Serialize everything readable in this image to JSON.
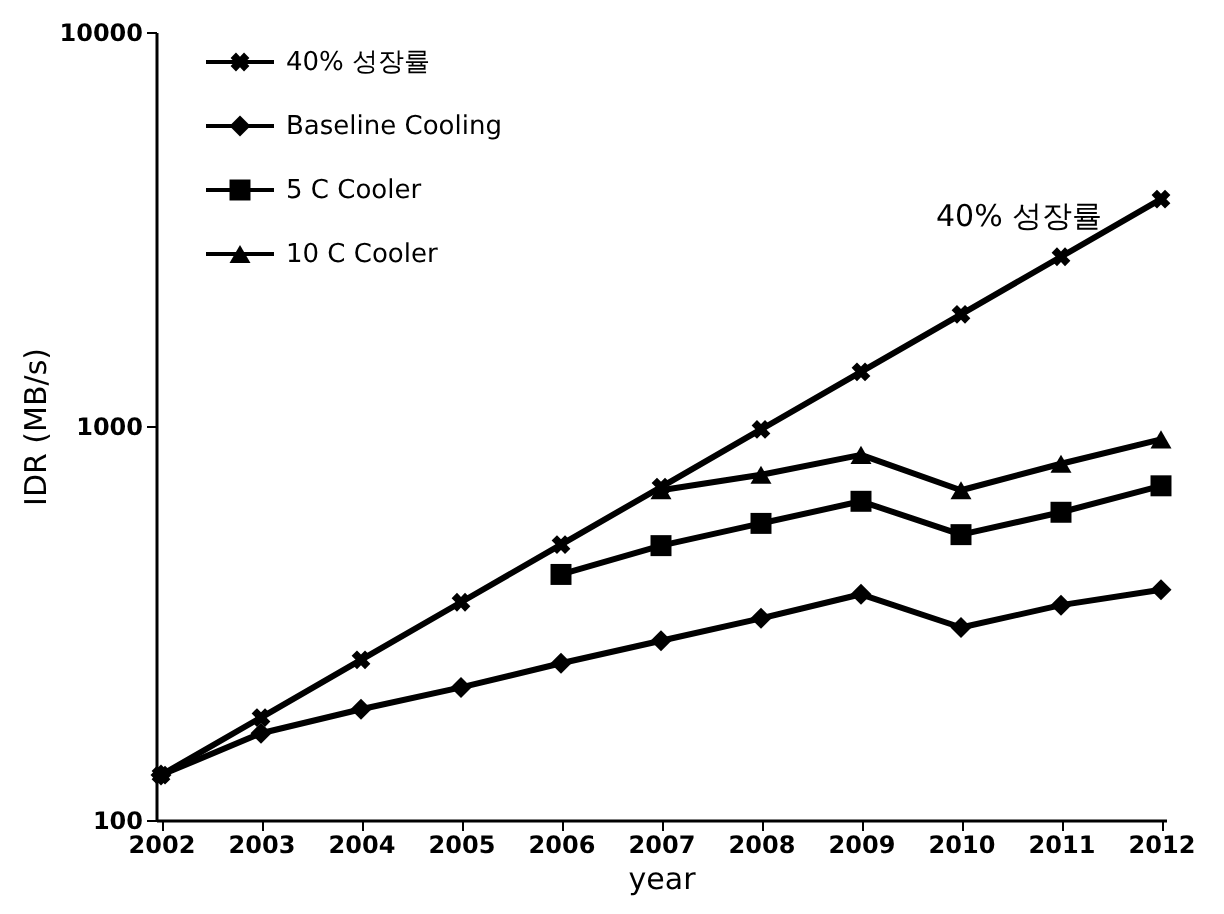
{
  "chart_data": {
    "type": "line",
    "xlabel": "year",
    "ylabel": "IDR (MB/s)",
    "categories": [
      "2002",
      "2003",
      "2004",
      "2005",
      "2006",
      "2007",
      "2008",
      "2009",
      "2010",
      "2011",
      "2012"
    ],
    "series": [
      {
        "name": "40% 성장률",
        "color": "#000000",
        "marker": "cross",
        "values": [
          130,
          182,
          255,
          357,
          500,
          700,
          980,
          1372,
          1921,
          2689,
          3765
        ]
      },
      {
        "name": "Baseline Cooling",
        "color": "#000000",
        "marker": "diamond",
        "values": [
          130,
          166,
          191,
          217,
          250,
          285,
          325,
          374,
          308,
          351,
          384
        ]
      },
      {
        "name": "5 C Cooler",
        "color": "#000000",
        "marker": "square",
        "values": [
          null,
          null,
          null,
          null,
          420,
          497,
          566,
          644,
          530,
          604,
          705
        ]
      },
      {
        "name": "10 C Cooler",
        "color": "#000000",
        "marker": "triangle",
        "values": [
          null,
          null,
          null,
          null,
          null,
          687,
          752,
          845,
          687,
          802,
          925
        ]
      }
    ],
    "log": "y",
    "ylim": [
      100,
      10000
    ],
    "yticks": [
      100,
      1000,
      10000
    ],
    "grid": false,
    "legend": "top left",
    "line_style": "solid",
    "annotations": [
      "40% 성장률"
    ]
  }
}
